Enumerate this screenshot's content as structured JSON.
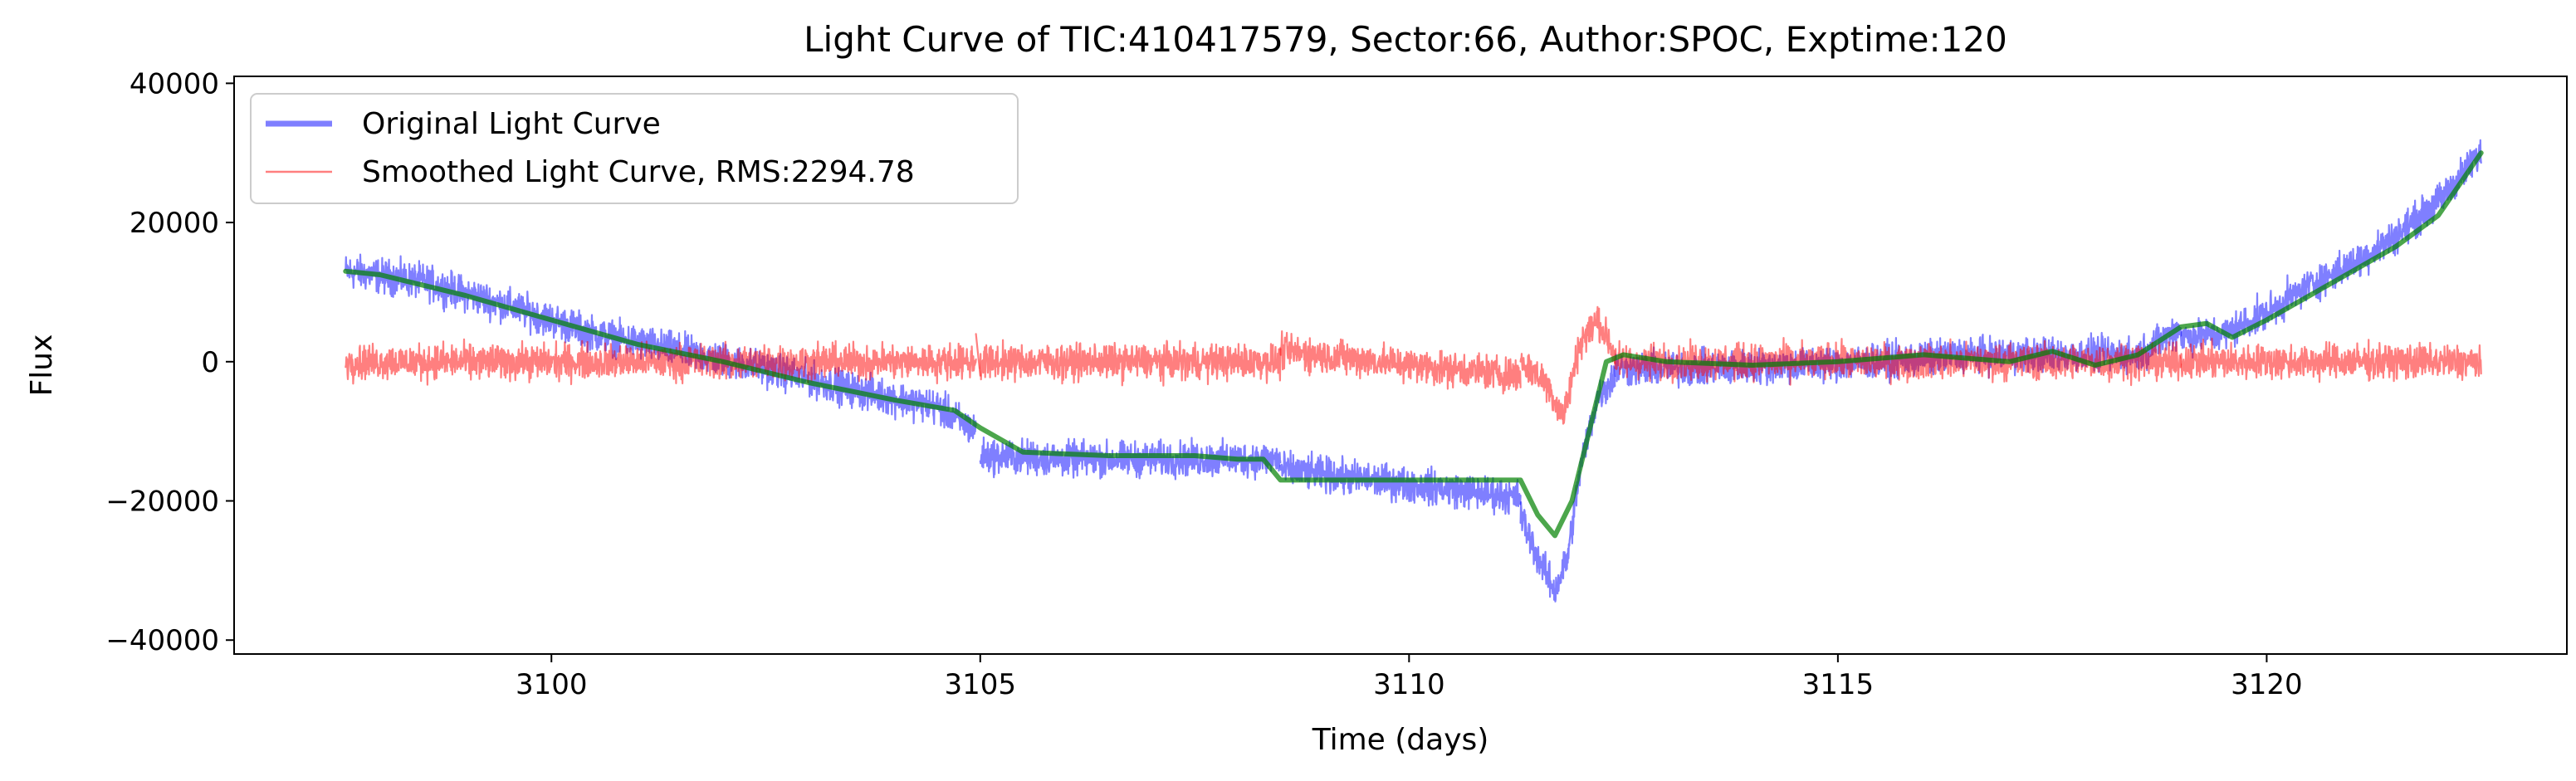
{
  "chart_data": {
    "type": "line",
    "title": "Light Curve of TIC:410417579, Sector:66, Author:SPOC, Exptime:120",
    "xlabel": "Time (days)",
    "ylabel": "Flux",
    "xlim": [
      3096.3,
      3123.5
    ],
    "ylim": [
      -42000,
      41000
    ],
    "x_ticks": [
      3100,
      3105,
      3110,
      3115,
      3120
    ],
    "x_tick_labels": [
      "3100",
      "3105",
      "3110",
      "3115",
      "3120"
    ],
    "y_ticks": [
      -40000,
      -20000,
      0,
      20000,
      40000
    ],
    "y_tick_labels": [
      "−40000",
      "−20000",
      "0",
      "20000",
      "40000"
    ],
    "grid": false,
    "legend_position": "top-left",
    "series": [
      {
        "name": "Original Light Curve",
        "color": "#0000ff",
        "opacity": 0.5,
        "noise_amplitude": 2300,
        "segments": [
          {
            "x": [
              3097.6,
              3098.5,
              3099.5,
              3100.5,
              3101.5,
              3102.5,
              3103.5,
              3104.5,
              3104.95
            ],
            "y": [
              13000,
              11500,
              8000,
              4000,
              1500,
              -1000,
              -4000,
              -6500,
              -10000
            ]
          },
          {
            "x": [
              3105.0,
              3106.0,
              3107.0,
              3108.0,
              3108.5
            ],
            "y": [
              -13500,
              -14000,
              -14000,
              -14000,
              -14000
            ]
          },
          {
            "x": [
              3108.5,
              3111.3
            ],
            "y": [
              -15500,
              -19500
            ]
          },
          {
            "x": [
              3111.3,
              3111.5,
              3111.7,
              3111.85,
              3112.0,
              3112.2,
              3112.4
            ],
            "y": [
              -22000,
              -28000,
              -33000,
              -28000,
              -15000,
              -5000,
              -2000
            ]
          },
          {
            "x": [
              3112.4,
              3113.5,
              3114.5,
              3115.5,
              3116.5,
              3117.5,
              3118.5,
              3119.0
            ],
            "y": [
              -1000,
              -1000,
              -500,
              0,
              1000,
              1000,
              1000,
              5000
            ]
          },
          {
            "x": [
              3119.0,
              3119.5,
              3120.0,
              3120.5,
              3121.0,
              3121.5,
              3122.0,
              3122.5
            ],
            "y": [
              3500,
              4000,
              7000,
              11000,
              14000,
              18000,
              23000,
              30000
            ]
          }
        ]
      },
      {
        "name": "Smoothed Light Curve, RMS:2294.78",
        "color": "#ff0000",
        "opacity": 0.5,
        "noise_amplitude": 2300,
        "segments": [
          {
            "x": [
              3097.6,
              3104.95
            ],
            "y": [
              0,
              0
            ]
          },
          {
            "x": [
              3104.95,
              3105.0
            ],
            "y": [
              4000,
              -2000
            ]
          },
          {
            "x": [
              3105.0,
              3108.5
            ],
            "y": [
              0,
              0
            ]
          },
          {
            "x": [
              3108.5,
              3111.3
            ],
            "y": [
              1500,
              -2000
            ]
          },
          {
            "x": [
              3111.3,
              3111.6,
              3111.8,
              3112.0,
              3112.2,
              3112.4
            ],
            "y": [
              0,
              -3000,
              -8000,
              3000,
              6000,
              1000
            ]
          },
          {
            "x": [
              3112.4,
              3119.0
            ],
            "y": [
              0,
              0
            ]
          },
          {
            "x": [
              3119.0,
              3122.5
            ],
            "y": [
              0,
              0
            ]
          }
        ]
      },
      {
        "name": "",
        "color": "#008000",
        "opacity": 0.7,
        "noise_amplitude": 0,
        "segments": [
          {
            "x": [
              3097.6,
              3098.0,
              3099.0,
              3100.0,
              3101.0,
              3102.0,
              3103.0,
              3104.0,
              3104.7,
              3105.0,
              3105.5,
              3106.5,
              3107.5,
              3108.0,
              3108.3,
              3108.5,
              3111.3,
              3111.5,
              3111.7,
              3111.9,
              3112.1,
              3112.2,
              3112.3,
              3112.5,
              3113.0,
              3114.0,
              3115.0,
              3116.0,
              3117.0,
              3117.5,
              3118.0,
              3118.5,
              3119.0,
              3119.3,
              3119.6,
              3120.0,
              3120.5,
              3121.0,
              3121.5,
              3122.0,
              3122.5
            ],
            "y": [
              13000,
              12500,
              9500,
              6000,
              2500,
              0,
              -3000,
              -5500,
              -7000,
              -9500,
              -13000,
              -13500,
              -13500,
              -14000,
              -14000,
              -17000,
              -17000,
              -22000,
              -25000,
              -20000,
              -10000,
              -5000,
              0,
              1000,
              0,
              -500,
              0,
              1000,
              0,
              1500,
              -500,
              1000,
              5000,
              5500,
              3500,
              6000,
              9500,
              13000,
              16500,
              21000,
              30000
            ]
          }
        ]
      }
    ]
  }
}
